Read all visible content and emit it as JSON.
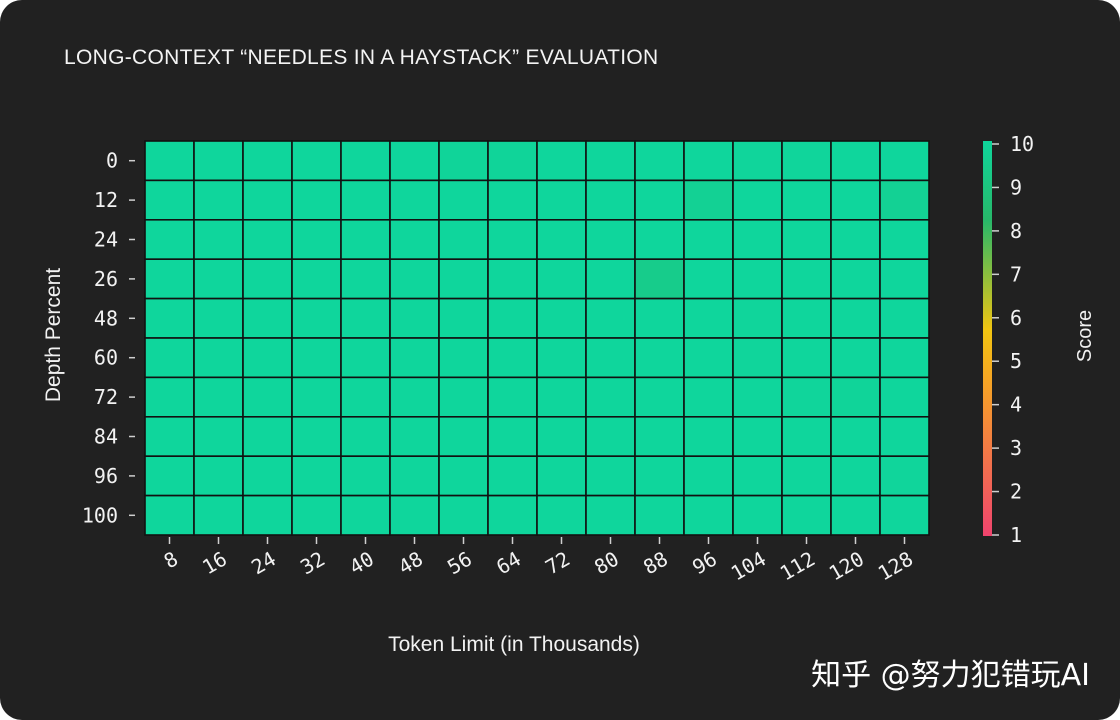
{
  "title": "LONG-CONTEXT “NEEDLES IN A HAYSTACK” EVALUATION",
  "watermark": "知乎 @努力犯错玩AI",
  "chart_data": {
    "type": "heatmap",
    "title": "LONG-CONTEXT “NEEDLES IN A HAYSTACK” EVALUATION",
    "xlabel": "Token Limit (in Thousands)",
    "ylabel": "Depth Percent",
    "x": [
      "8",
      "16",
      "24",
      "32",
      "40",
      "48",
      "56",
      "64",
      "72",
      "80",
      "88",
      "96",
      "104",
      "112",
      "120",
      "128"
    ],
    "y": [
      "0",
      "12",
      "24",
      "26",
      "48",
      "60",
      "72",
      "84",
      "96",
      "100"
    ],
    "values": [
      [
        10,
        10,
        10,
        10,
        10,
        10,
        9.9,
        9.9,
        10,
        10,
        10,
        10,
        9.95,
        9.95,
        10,
        10
      ],
      [
        10,
        10,
        10,
        10,
        10,
        10,
        10,
        10,
        10,
        10,
        10,
        9.7,
        10,
        10,
        10,
        9.7
      ],
      [
        10,
        10,
        10,
        10,
        10,
        10,
        10,
        10,
        10,
        10,
        10,
        10,
        10,
        10,
        10,
        10
      ],
      [
        10,
        10,
        10,
        10,
        10,
        10,
        10,
        10,
        10,
        10,
        9.4,
        10,
        10,
        10,
        10,
        10
      ],
      [
        10,
        10,
        10,
        10,
        10,
        10,
        10,
        10,
        10,
        10,
        10,
        10,
        9.95,
        10,
        10,
        10
      ],
      [
        10,
        10,
        10,
        10,
        10,
        10,
        10,
        10,
        10,
        10,
        10,
        10,
        9.95,
        10,
        10,
        10
      ],
      [
        10,
        10,
        10,
        10,
        10,
        10,
        10,
        10,
        10,
        10,
        10,
        10,
        10,
        9.95,
        9.9,
        10
      ],
      [
        10,
        10,
        10,
        10,
        10,
        10,
        10,
        10,
        10,
        10,
        10,
        10,
        10,
        10,
        10,
        10
      ],
      [
        10,
        10,
        10,
        10,
        10,
        10,
        10,
        10,
        10,
        10,
        10,
        10,
        10,
        10,
        10,
        9.95
      ],
      [
        10,
        10,
        10,
        10,
        10,
        10,
        10,
        10,
        10,
        10,
        10,
        10,
        10,
        10,
        10,
        10
      ]
    ],
    "colorbar": {
      "label": "Score",
      "min": 1,
      "max": 10,
      "ticks": [
        "1",
        "2",
        "3",
        "4",
        "5",
        "6",
        "7",
        "8",
        "9",
        "10"
      ],
      "colors": [
        "#f0446e",
        "#f5a623",
        "#f2c511",
        "#27b86a",
        "#0fd69c"
      ]
    },
    "grid": true,
    "background": "#212121",
    "cell_border_color": "#111111"
  }
}
